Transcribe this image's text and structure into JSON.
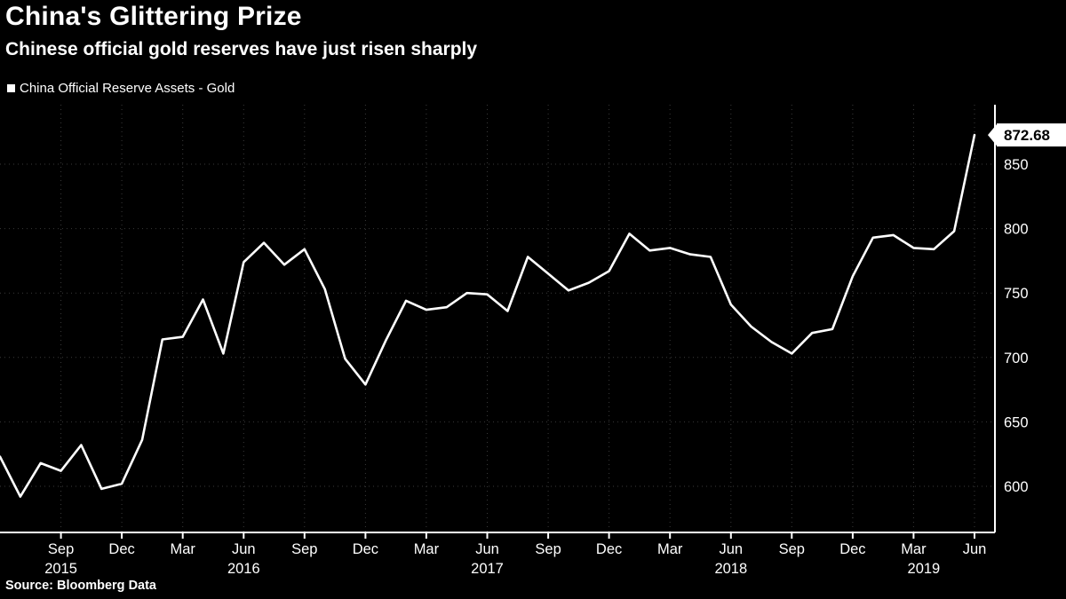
{
  "header": {
    "title": "China's Glittering Prize",
    "subtitle": "Chinese official gold reserves have just risen sharply"
  },
  "legend": {
    "swatch_icon": "square-swatch-icon",
    "label": "China Official Reserve Assets - Gold",
    "color": "#ffffff"
  },
  "source": {
    "label": "Source: Bloomberg Data"
  },
  "colors": {
    "background": "#000000",
    "line": "#ffffff",
    "grid": "#3a3a3a",
    "axis": "#ffffff",
    "text": "#ffffff",
    "flag_bg": "#ffffff",
    "flag_text": "#000000"
  },
  "chart_data": {
    "type": "line",
    "title": "China's Glittering Prize",
    "subtitle": "Chinese official gold reserves have just risen sharply",
    "legend_position": "top-left",
    "grid": "dotted",
    "x": [
      "2015-06",
      "2015-07",
      "2015-08",
      "2015-09",
      "2015-10",
      "2015-11",
      "2015-12",
      "2016-01",
      "2016-02",
      "2016-03",
      "2016-04",
      "2016-05",
      "2016-06",
      "2016-07",
      "2016-08",
      "2016-09",
      "2016-10",
      "2016-11",
      "2016-12",
      "2017-01",
      "2017-02",
      "2017-03",
      "2017-04",
      "2017-05",
      "2017-06",
      "2017-07",
      "2017-08",
      "2017-09",
      "2017-10",
      "2017-11",
      "2017-12",
      "2018-01",
      "2018-02",
      "2018-03",
      "2018-04",
      "2018-05",
      "2018-06",
      "2018-07",
      "2018-08",
      "2018-09",
      "2018-10",
      "2018-11",
      "2018-12",
      "2019-01",
      "2019-02",
      "2019-03",
      "2019-04",
      "2019-05",
      "2019-06"
    ],
    "series": [
      {
        "name": "China Official Reserve Assets - Gold",
        "values": [
          623,
          592,
          618,
          612,
          632,
          598,
          602,
          636,
          714,
          716,
          745,
          703,
          774,
          789,
          772,
          784,
          753,
          699,
          679,
          713,
          744,
          737,
          739,
          750,
          749,
          736,
          778,
          765,
          752,
          758,
          767,
          796,
          783,
          785,
          780,
          778,
          741,
          724,
          712,
          703,
          719,
          722,
          763,
          793,
          795,
          785,
          784,
          798,
          872.68
        ]
      }
    ],
    "y_ticks": [
      600,
      650,
      700,
      750,
      800,
      850
    ],
    "ylim": [
      565,
      895
    ],
    "x_ticks": [
      {
        "label": "Sep",
        "i": 3
      },
      {
        "label": "Dec",
        "i": 6
      },
      {
        "label": "Mar",
        "i": 9
      },
      {
        "label": "Jun",
        "i": 12
      },
      {
        "label": "Sep",
        "i": 15
      },
      {
        "label": "Dec",
        "i": 18
      },
      {
        "label": "Mar",
        "i": 21
      },
      {
        "label": "Jun",
        "i": 24
      },
      {
        "label": "Sep",
        "i": 27
      },
      {
        "label": "Dec",
        "i": 30
      },
      {
        "label": "Mar",
        "i": 33
      },
      {
        "label": "Jun",
        "i": 36
      },
      {
        "label": "Sep",
        "i": 39
      },
      {
        "label": "Dec",
        "i": 42
      },
      {
        "label": "Mar",
        "i": 45
      },
      {
        "label": "Jun",
        "i": 48
      }
    ],
    "year_labels": [
      {
        "label": "2015",
        "i": 3
      },
      {
        "label": "2016",
        "i": 12
      },
      {
        "label": "2017",
        "i": 24
      },
      {
        "label": "2018",
        "i": 36
      },
      {
        "label": "2019",
        "i": 45.5
      }
    ],
    "last_value_label": "872.68"
  }
}
